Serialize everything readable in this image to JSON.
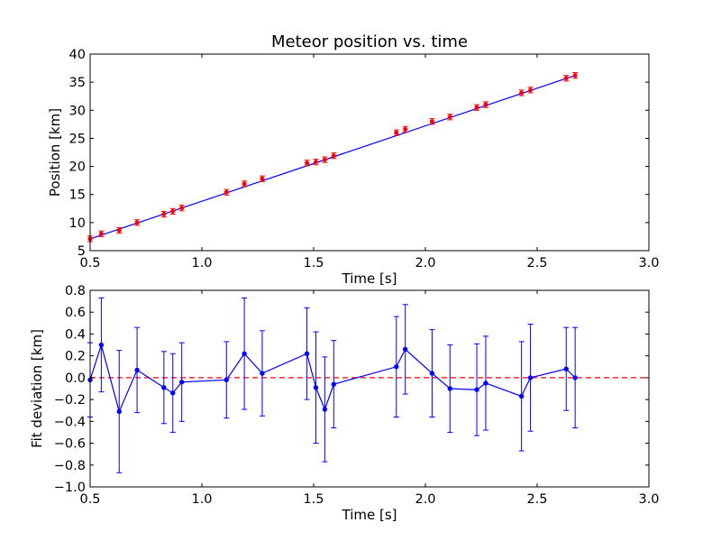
{
  "chart_data": [
    {
      "type": "scatter",
      "title": "Meteor position vs. time",
      "xlabel": "Time [s]",
      "ylabel": "Position [km]",
      "xlim": [
        0.5,
        3.0
      ],
      "ylim": [
        5,
        40
      ],
      "xticks": [
        "0.5",
        "1.0",
        "1.5",
        "2.0",
        "2.5",
        "3.0"
      ],
      "yticks": [
        "5",
        "10",
        "15",
        "20",
        "25",
        "30",
        "35",
        "40"
      ],
      "grid": false,
      "colors": {
        "points": "#ff0000",
        "fit_line": "#0000ff",
        "errorbars": "#ff0000"
      },
      "series": [
        {
          "kind": "measured points with error bars",
          "x": [
            0.5,
            0.55,
            0.63,
            0.71,
            0.83,
            0.87,
            0.91,
            1.11,
            1.19,
            1.27,
            1.47,
            1.51,
            1.55,
            1.59,
            1.87,
            1.91,
            2.03,
            2.11,
            2.23,
            2.27,
            2.43,
            2.47,
            2.63,
            2.67
          ],
          "y": [
            7.1,
            8.0,
            8.6,
            10.0,
            11.5,
            12.0,
            12.6,
            15.4,
            16.9,
            17.8,
            20.6,
            20.8,
            21.2,
            21.9,
            26.0,
            26.6,
            28.0,
            28.8,
            30.5,
            31.0,
            33.1,
            33.6,
            35.7,
            36.2
          ],
          "yerr": 0.5
        },
        {
          "kind": "linear fit",
          "x": [
            0.5,
            2.67
          ],
          "y": [
            7.1,
            36.2
          ]
        }
      ]
    },
    {
      "type": "line",
      "title": "",
      "xlabel": "Time [s]",
      "ylabel": "Fit deviation [km]",
      "xlim": [
        0.5,
        3.0
      ],
      "ylim": [
        -1.0,
        0.8
      ],
      "xticks": [
        "0.5",
        "1.0",
        "1.5",
        "2.0",
        "2.5",
        "3.0"
      ],
      "yticks": [
        "0.8",
        "0.6",
        "0.4",
        "0.2",
        "0.0",
        "−0.2",
        "−0.4",
        "−0.6",
        "−0.8",
        "−1.0"
      ],
      "grid": false,
      "colors": {
        "series": "#0000ff",
        "reference": "#ff0000"
      },
      "series": [
        {
          "kind": "deviation with error bars",
          "x": [
            0.5,
            0.55,
            0.63,
            0.71,
            0.83,
            0.87,
            0.91,
            1.11,
            1.19,
            1.27,
            1.47,
            1.51,
            1.55,
            1.59,
            1.87,
            1.91,
            2.03,
            2.11,
            2.23,
            2.27,
            2.43,
            2.47,
            2.63,
            2.67
          ],
          "y": [
            -0.02,
            0.3,
            -0.31,
            0.07,
            -0.09,
            -0.14,
            -0.04,
            -0.02,
            0.22,
            0.04,
            0.22,
            -0.09,
            -0.29,
            -0.06,
            0.1,
            0.26,
            0.04,
            -0.1,
            -0.11,
            -0.05,
            -0.17,
            0.0,
            0.08,
            0.0
          ],
          "yerr": [
            0.34,
            0.43,
            0.56,
            0.39,
            0.33,
            0.36,
            0.36,
            0.35,
            0.51,
            0.39,
            0.42,
            0.51,
            0.48,
            0.4,
            0.46,
            0.41,
            0.4,
            0.4,
            0.42,
            0.43,
            0.5,
            0.49,
            0.38,
            0.46
          ]
        },
        {
          "kind": "zero reference (dashed)",
          "y": 0.0
        }
      ]
    }
  ]
}
